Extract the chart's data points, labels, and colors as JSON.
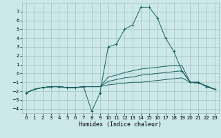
{
  "title": "",
  "xlabel": "Humidex (Indice chaleur)",
  "ylabel": "",
  "bg_color": "#cce8e8",
  "grid_color": "#99bbbb",
  "line_color": "#1a5f5f",
  "xlim": [
    -0.5,
    23.5
  ],
  "ylim": [
    -4.5,
    8.0
  ],
  "xticks": [
    0,
    1,
    2,
    3,
    4,
    5,
    6,
    7,
    8,
    9,
    10,
    11,
    12,
    13,
    14,
    15,
    16,
    17,
    18,
    19,
    20,
    21,
    22,
    23
  ],
  "yticks": [
    -4,
    -3,
    -2,
    -1,
    0,
    1,
    2,
    3,
    4,
    5,
    6,
    7
  ],
  "lines": [
    {
      "x": [
        0,
        1,
        2,
        3,
        4,
        5,
        6,
        7,
        8,
        9,
        10,
        11,
        12,
        13,
        14,
        15,
        16,
        17,
        18,
        19,
        20,
        21,
        22,
        23
      ],
      "y": [
        -2.2,
        -1.8,
        -1.6,
        -1.5,
        -1.5,
        -1.6,
        -1.6,
        -1.5,
        -4.3,
        -2.2,
        3.0,
        3.3,
        5.0,
        5.5,
        7.5,
        7.5,
        6.3,
        4.0,
        2.5,
        0.3,
        -1.0,
        -1.0,
        -1.5,
        -1.8
      ],
      "marker": true
    },
    {
      "x": [
        0,
        1,
        2,
        3,
        4,
        5,
        6,
        7,
        8,
        9,
        10,
        11,
        12,
        13,
        14,
        15,
        16,
        17,
        18,
        19,
        20,
        21,
        22,
        23
      ],
      "y": [
        -2.2,
        -1.8,
        -1.6,
        -1.5,
        -1.5,
        -1.6,
        -1.6,
        -1.5,
        -1.5,
        -1.5,
        -0.4,
        -0.2,
        0.1,
        0.3,
        0.5,
        0.6,
        0.7,
        0.8,
        0.9,
        0.9,
        -1.0,
        -1.0,
        -1.5,
        -1.8
      ],
      "marker": false
    },
    {
      "x": [
        0,
        1,
        2,
        3,
        4,
        5,
        6,
        7,
        8,
        9,
        10,
        11,
        12,
        13,
        14,
        15,
        16,
        17,
        18,
        19,
        20,
        21,
        22,
        23
      ],
      "y": [
        -2.2,
        -1.8,
        -1.6,
        -1.5,
        -1.5,
        -1.6,
        -1.6,
        -1.5,
        -1.5,
        -1.5,
        -0.9,
        -0.7,
        -0.5,
        -0.4,
        -0.2,
        -0.1,
        0.0,
        0.1,
        0.2,
        0.3,
        -1.0,
        -1.1,
        -1.4,
        -1.8
      ],
      "marker": false
    },
    {
      "x": [
        0,
        1,
        2,
        3,
        4,
        5,
        6,
        7,
        8,
        9,
        10,
        11,
        12,
        13,
        14,
        15,
        16,
        17,
        18,
        19,
        20,
        21,
        22,
        23
      ],
      "y": [
        -2.2,
        -1.8,
        -1.6,
        -1.5,
        -1.5,
        -1.6,
        -1.6,
        -1.5,
        -1.5,
        -1.5,
        -1.3,
        -1.2,
        -1.1,
        -1.0,
        -1.0,
        -0.9,
        -0.8,
        -0.7,
        -0.6,
        -0.5,
        -1.0,
        -1.1,
        -1.4,
        -1.8
      ],
      "marker": false
    }
  ],
  "tick_fontsize": 5,
  "xlabel_fontsize": 6,
  "linewidth": 0.7,
  "marker_size": 3.0,
  "marker_linewidth": 0.7
}
